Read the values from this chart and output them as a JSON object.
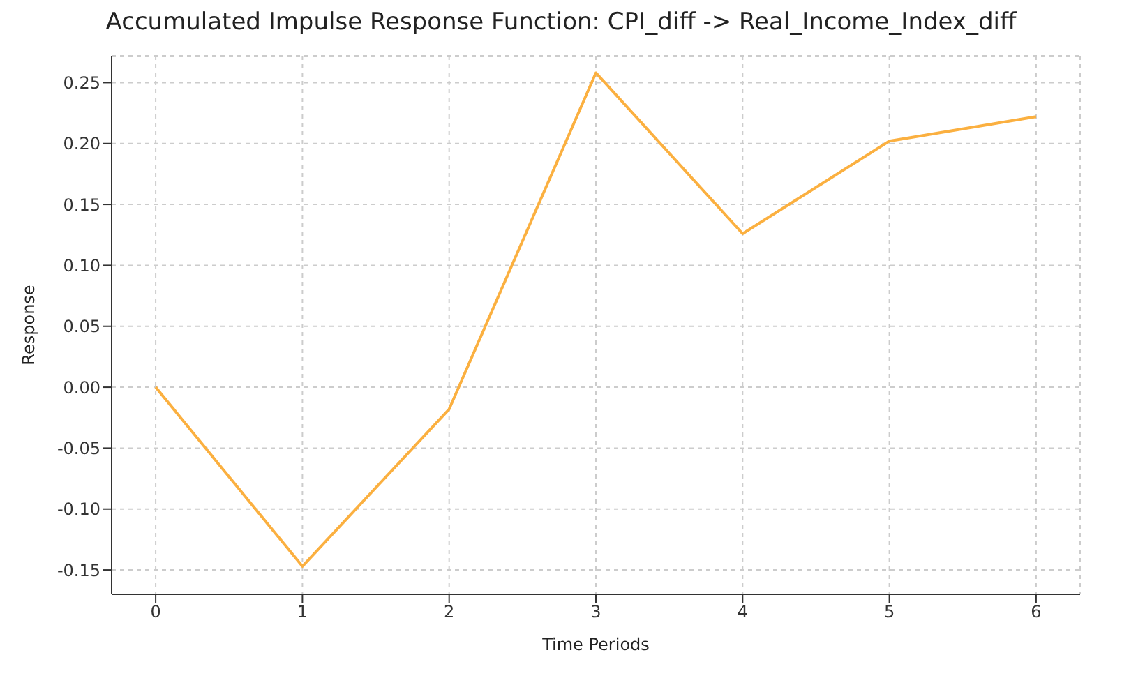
{
  "chart_data": {
    "type": "line",
    "title": "Accumulated Impulse Response Function: CPI_diff -> Real_Income_Index_diff",
    "xlabel": "Time Periods",
    "ylabel": "Response",
    "x": [
      0,
      1,
      2,
      3,
      4,
      5,
      6
    ],
    "series": [
      {
        "color": "#fbb040",
        "values": [
          0.0,
          -0.147,
          -0.018,
          0.258,
          0.126,
          0.202,
          0.222
        ]
      }
    ],
    "xlim": [
      -0.3,
      6.3
    ],
    "xticks": [
      0,
      1,
      2,
      3,
      4,
      5,
      6
    ],
    "ylim": [
      -0.17,
      0.272
    ],
    "yticks": [
      -0.15,
      {
        "value": -0.1,
        "label": "-0.10"
      },
      -0.05,
      {
        "value": 0,
        "label": "0.00"
      },
      0.05,
      {
        "value": 0.1,
        "label": "0.10"
      },
      0.15,
      {
        "value": 0.2,
        "label": "0.20"
      },
      0.25
    ],
    "grid": true,
    "marker": "none",
    "line_style": "solid"
  }
}
